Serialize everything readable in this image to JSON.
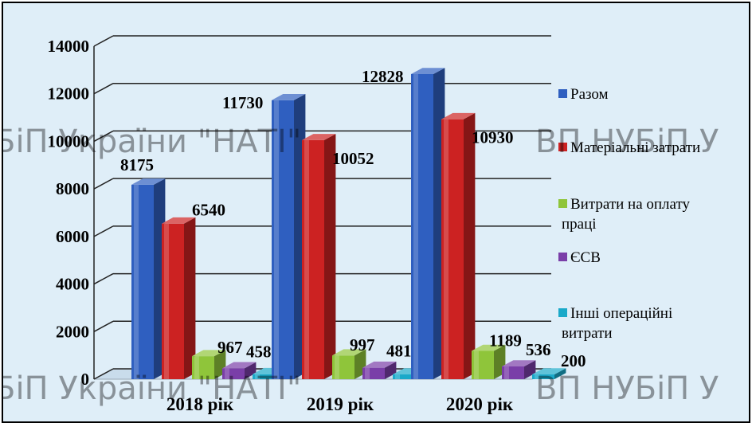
{
  "chart_data": {
    "type": "bar",
    "title": "",
    "xlabel": "",
    "ylabel": "",
    "categories": [
      "2018 рік",
      "2019 рік",
      "2020 рік"
    ],
    "y_ticks": [
      "0",
      "2000",
      "4000",
      "6000",
      "8000",
      "10000",
      "12000",
      "14000"
    ],
    "ylim": [
      0,
      14000
    ],
    "grid": true,
    "legend_position": "right",
    "series": [
      {
        "name": "Разом",
        "values": [
          8175,
          11730,
          12828
        ],
        "labels": [
          "8175",
          "11730",
          "12828"
        ],
        "color": "#2f5fc0"
      },
      {
        "name": "Матеріальні затрати",
        "values": [
          6540,
          10052,
          10930
        ],
        "labels": [
          "6540",
          "10052",
          "10930"
        ],
        "color": "#cc2222"
      },
      {
        "name": "Витрати на оплату праці",
        "values": [
          967,
          997,
          1189
        ],
        "labels": [
          "967",
          "997",
          "1189"
        ],
        "color": "#8fc53a"
      },
      {
        "name": "ЄСВ",
        "values": [
          458,
          481,
          536
        ],
        "labels": [
          "458",
          "481",
          "536"
        ],
        "color": "#7a3ea8"
      },
      {
        "name": "Інші операційні витрати",
        "values": [
          210,
          200,
          200
        ],
        "labels": [
          "210",
          "200",
          "200"
        ],
        "color": "#1aa9c9"
      }
    ]
  },
  "watermarks": [
    "БіП України \"НАТІ\"",
    "ВП НУБіП У",
    "БіП України \"НАТІ\"",
    "ВП НУБіП У"
  ]
}
